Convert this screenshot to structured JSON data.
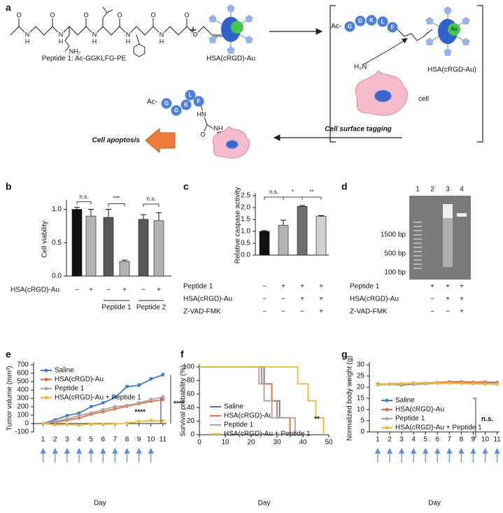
{
  "scheme": {
    "panel_label": "a",
    "peptide_label": "Peptide 1: Ac-GGKLFG-PE",
    "plus": "+",
    "hsa_label": "HSA(cRGD)-Au",
    "atoms": [
      "O",
      "N",
      "H",
      "O",
      "N",
      "H",
      "O",
      "N",
      "H",
      "O",
      "N",
      "H",
      "O",
      "N",
      "H",
      "O",
      "O",
      "NH₂"
    ],
    "ac": "Ac-",
    "beads": [
      "G",
      "G",
      "K",
      "L",
      "F"
    ],
    "au": "Au",
    "amine": "H₂N",
    "cell": "cell",
    "complex_label": "HSA(cRGD-Au)",
    "tagging": "Cell surface tagging",
    "apoptosis": "Cell apoptosis",
    "ac2": "Ac-",
    "beads2": [
      "G",
      "G",
      "K",
      "L",
      "F"
    ],
    "hn": "HN",
    "o": "O",
    "nh": "NH"
  },
  "gel": {
    "panel_label": "d",
    "lanes": [
      "1",
      "2",
      "3",
      "4"
    ],
    "markers": [
      "1500 bp",
      "500 bp",
      "100 bp"
    ],
    "conditions": [
      {
        "label": "Peptide 1",
        "marks": [
          "+",
          "+",
          "+"
        ]
      },
      {
        "label": "HSA(cRGD)-Au",
        "marks": [
          "−",
          "+",
          "+"
        ]
      },
      {
        "label": "Z-VAD-FMK",
        "marks": [
          "−",
          "−",
          "+"
        ]
      }
    ]
  },
  "chart_data": [
    {
      "panel_label": "b",
      "type": "bar",
      "ylabel": "Cell viability",
      "values": [
        1.0,
        0.9,
        0.88,
        0.22,
        0.85,
        0.83
      ],
      "errors": [
        0.03,
        0.1,
        0.12,
        0.02,
        0.07,
        0.12
      ],
      "colors": [
        "#111111",
        "#b3b3b3",
        "#595959",
        "#b3b3b3",
        "#595959",
        "#b3b3b3"
      ],
      "ylim": [
        0,
        1.1
      ],
      "yticks": [
        {
          "value": 0,
          "label": "0.0"
        },
        {
          "value": 0.5,
          "label": "0.5"
        },
        {
          "value": 1,
          "label": "1.0"
        }
      ],
      "significance": [
        "n.s.",
        "***",
        "n.s."
      ],
      "conditions": [
        {
          "label": "HSA(cRGD)-Au",
          "marks": [
            "−",
            "+",
            "−",
            "+",
            "−",
            "+"
          ]
        }
      ],
      "groups": [
        "Peptide 1",
        "Peptide 2"
      ]
    },
    {
      "panel_label": "c",
      "type": "bar",
      "ylabel": "Relative caspase activity",
      "values": [
        1.0,
        1.26,
        2.05,
        1.63
      ],
      "errors": [
        0.03,
        0.21,
        0.04,
        0.03
      ],
      "colors": [
        "#111111",
        "#b3b3b3",
        "#6e6e6e",
        "#d0d0d0"
      ],
      "ylim": [
        0,
        2.5
      ],
      "yticks": [
        {
          "value": 0,
          "label": "0.0"
        },
        {
          "value": 0.5,
          "label": "0.5"
        },
        {
          "value": 1,
          "label": "1.0"
        },
        {
          "value": 1.5,
          "label": "1.5"
        },
        {
          "value": 2,
          "label": "2.0"
        },
        {
          "value": 2.5,
          "label": "2.5"
        }
      ],
      "significance": [
        "n.s.",
        "*",
        "**"
      ],
      "conditions": [
        {
          "label": "Peptide 1",
          "marks": [
            "−",
            "+",
            "+",
            "+"
          ]
        },
        {
          "label": "HSA(cRGD)-Au",
          "marks": [
            "−",
            "−",
            "+",
            "+"
          ]
        },
        {
          "label": "Z-VAD-FMK",
          "marks": [
            "−",
            "−",
            "−",
            "+"
          ]
        }
      ]
    },
    {
      "panel_label": "e",
      "type": "line",
      "markers": true,
      "xlabel": "Day",
      "ylabel": "Tumor volume (mm³)",
      "x": [
        1,
        2,
        3,
        4,
        5,
        6,
        7,
        8,
        9,
        10,
        11
      ],
      "xlim": [
        0.2,
        11.3
      ],
      "xticks": [
        1,
        2,
        3,
        4,
        5,
        6,
        7,
        8,
        9,
        10,
        11
      ],
      "ylim": [
        -100,
        700
      ],
      "yticks": [
        -100,
        0,
        100,
        200,
        300,
        400,
        500,
        600,
        700
      ],
      "series": [
        {
          "name": "Saline",
          "color": "#3a7bd5",
          "values": [
            0,
            45,
            95,
            125,
            200,
            245,
            310,
            440,
            455,
            530,
            580
          ],
          "errors": [
            5,
            8,
            10,
            12,
            15,
            15,
            18,
            15,
            20,
            18,
            20
          ]
        },
        {
          "name": "HSA(cRGD)-Au",
          "color": "#f26b3a",
          "values": [
            0,
            15,
            40,
            65,
            110,
            140,
            175,
            205,
            235,
            265,
            285
          ],
          "errors": [
            5,
            6,
            8,
            10,
            10,
            12,
            12,
            14,
            14,
            16,
            18
          ]
        },
        {
          "name": "Peptide 1",
          "color": "#a6a6a6",
          "values": [
            0,
            25,
            55,
            95,
            125,
            165,
            200,
            215,
            245,
            285,
            315
          ],
          "errors": [
            5,
            6,
            8,
            10,
            12,
            12,
            14,
            14,
            15,
            16,
            18
          ]
        },
        {
          "name": "HSA(cRGD)-Au + Peptide 1",
          "color": "#f7b928",
          "values": [
            0,
            -15,
            -10,
            -20,
            -5,
            -10,
            -5,
            5,
            25,
            35,
            30
          ],
          "errors": [
            5,
            5,
            6,
            6,
            8,
            8,
            8,
            10,
            12,
            14,
            14
          ]
        }
      ],
      "annotations": [
        "****",
        "****"
      ]
    },
    {
      "panel_label": "f",
      "type": "line",
      "markers": false,
      "xlabel": "Day",
      "ylabel": "Survival probability (%)",
      "xlim": [
        0,
        50
      ],
      "xticks": [
        0,
        10,
        20,
        30,
        40,
        50
      ],
      "ylim": [
        0,
        100
      ],
      "yticks": [
        0,
        20,
        40,
        60,
        80,
        100
      ],
      "series": [
        {
          "name": "Saline",
          "color": "#3a7bd5",
          "x": [
            0,
            25,
            25,
            28,
            28,
            31,
            31,
            35,
            35
          ],
          "values": [
            100,
            100,
            75,
            75,
            50,
            50,
            25,
            25,
            0
          ]
        },
        {
          "name": "HSA(cRGD)-Au",
          "color": "#f26b3a",
          "x": [
            0,
            24,
            24,
            28,
            28,
            30,
            30,
            35,
            35
          ],
          "values": [
            100,
            100,
            75,
            75,
            50,
            50,
            25,
            25,
            0
          ]
        },
        {
          "name": "Peptide 1",
          "color": "#a6a6a6",
          "x": [
            0,
            23,
            23,
            25,
            25,
            28,
            28,
            37,
            37
          ],
          "values": [
            100,
            100,
            75,
            75,
            50,
            50,
            25,
            25,
            0
          ]
        },
        {
          "name": "HSA(cRGD)-Au + Peptide 1",
          "color": "#f7b928",
          "x": [
            0,
            38,
            38,
            42,
            42,
            45,
            45,
            48,
            48
          ],
          "values": [
            100,
            100,
            75,
            75,
            50,
            50,
            25,
            25,
            0
          ]
        }
      ],
      "annotations": [
        "**"
      ]
    },
    {
      "panel_label": "g",
      "type": "line",
      "markers": true,
      "xlabel": "Day",
      "ylabel": "Normalized body weight (g)",
      "x": [
        1,
        2,
        3,
        4,
        5,
        6,
        7,
        8,
        9,
        10,
        11
      ],
      "xlim": [
        0.3,
        11.2
      ],
      "xticks": [
        1,
        2,
        3,
        4,
        5,
        6,
        7,
        8,
        9,
        10,
        11
      ],
      "ylim": [
        0,
        30
      ],
      "yticks": [
        0,
        5,
        10,
        15,
        20,
        25,
        30
      ],
      "series": [
        {
          "name": "Saline",
          "color": "#3a7bd5",
          "values": [
            21.5,
            21.2,
            21.0,
            21.3,
            21.5,
            21.8,
            22.0,
            22.2,
            22.0,
            22.1,
            22.2
          ]
        },
        {
          "name": "HSA(cRGD)-Au",
          "color": "#f26b3a",
          "values": [
            21.3,
            21.5,
            21.6,
            21.8,
            21.9,
            22.1,
            22.4,
            22.5,
            22.3,
            22.4,
            22.0
          ]
        },
        {
          "name": "Peptide 1",
          "color": "#a6a6a6",
          "values": [
            21.0,
            21.2,
            21.3,
            21.5,
            21.6,
            21.8,
            21.9,
            22.0,
            21.8,
            21.9,
            21.5
          ]
        },
        {
          "name": "HSA(cRGD)-Au + Peptide 1",
          "color": "#f7b928",
          "values": [
            21.2,
            21.4,
            21.5,
            21.6,
            21.8,
            21.7,
            21.8,
            21.6,
            21.5,
            21.4,
            21.3
          ]
        }
      ],
      "annotations": [
        "n.s."
      ]
    }
  ]
}
